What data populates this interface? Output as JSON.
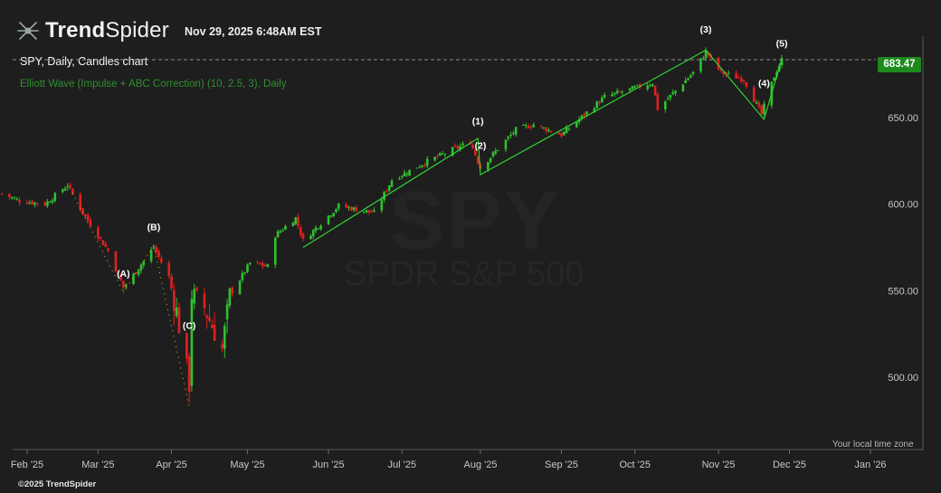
{
  "header": {
    "brand_bold": "Trend",
    "brand_light": "Spider",
    "datetime": "Nov 29, 2025 6:48AM EST",
    "chart_title": "SPY, Daily, Candles chart",
    "indicator_label": "Elliott Wave (Impulse + ABC Correction) (10, 2.5, 3), Daily"
  },
  "watermark": {
    "symbol": "SPY",
    "name": "SPDR S&P 500"
  },
  "footer": {
    "timezone_note": "Your local time zone",
    "copyright": "©2025 TrendSpider"
  },
  "colors": {
    "up": "#2fc02f",
    "down": "#e02020",
    "wave": "#33dd33",
    "background": "#1e1e1e",
    "badge": "#1d8a1d"
  },
  "chart_data": {
    "type": "candlestick",
    "title": "SPY, Daily, Candles chart",
    "ylim": [
      470,
      710
    ],
    "y_ticks": [
      500,
      550,
      600,
      650
    ],
    "y_tick_labels": [
      "500.00",
      "550.00",
      "600.00",
      "650.00"
    ],
    "last_price": 683.47,
    "last_price_label": "683.47",
    "x_month_labels": [
      "Feb '25",
      "Mar '25",
      "Apr '25",
      "May '25",
      "Jun '25",
      "Jul '25",
      "Aug '25",
      "Sep '25",
      "Oct '25",
      "Nov '25",
      "Dec '25",
      "Jan '26"
    ],
    "x_month_dates": [
      "2025-02-03",
      "2025-03-03",
      "2025-04-01",
      "2025-05-01",
      "2025-06-02",
      "2025-07-01",
      "2025-08-01",
      "2025-09-02",
      "2025-10-01",
      "2025-11-03",
      "2025-12-01",
      "2026-01-02"
    ],
    "x_range": [
      "2025-01-24",
      "2026-01-06"
    ],
    "price_path": [
      [
        "2025-01-24",
        606
      ],
      [
        "2025-01-31",
        602
      ],
      [
        "2025-02-10",
        600
      ],
      [
        "2025-02-19",
        611
      ],
      [
        "2025-02-25",
        595
      ],
      [
        "2025-03-07",
        573
      ],
      [
        "2025-03-13",
        552
      ],
      [
        "2025-03-18",
        561
      ],
      [
        "2025-03-25",
        575
      ],
      [
        "2025-03-31",
        558
      ],
      [
        "2025-04-03",
        538
      ],
      [
        "2025-04-08",
        496
      ],
      [
        "2025-04-09",
        548
      ],
      [
        "2025-04-14",
        540
      ],
      [
        "2025-04-21",
        516
      ],
      [
        "2025-04-24",
        547
      ],
      [
        "2025-05-02",
        566
      ],
      [
        "2025-05-09",
        564
      ],
      [
        "2025-05-12",
        582
      ],
      [
        "2025-05-20",
        592
      ],
      [
        "2025-05-23",
        579
      ],
      [
        "2025-06-06",
        599
      ],
      [
        "2025-06-20",
        595
      ],
      [
        "2025-06-27",
        614
      ],
      [
        "2025-07-10",
        624
      ],
      [
        "2025-07-28",
        636
      ],
      [
        "2025-08-01",
        621
      ],
      [
        "2025-08-15",
        643
      ],
      [
        "2025-08-22",
        646
      ],
      [
        "2025-09-02",
        640
      ],
      [
        "2025-09-19",
        662
      ],
      [
        "2025-10-08",
        670
      ],
      [
        "2025-10-10",
        655
      ],
      [
        "2025-10-24",
        676
      ],
      [
        "2025-10-29",
        688
      ],
      [
        "2025-11-04",
        676
      ],
      [
        "2025-11-13",
        672
      ],
      [
        "2025-11-20",
        652
      ],
      [
        "2025-11-25",
        674
      ],
      [
        "2025-11-28",
        683.47
      ]
    ],
    "elliott_wave_impulse": [
      [
        "2025-05-23",
        575
      ],
      [
        "2025-07-31",
        638
      ],
      [
        "2025-08-01",
        617
      ],
      [
        "2025-10-29",
        689
      ],
      [
        "2025-11-21",
        649
      ],
      [
        "2025-11-28",
        684
      ]
    ],
    "elliott_wave_correction": [
      [
        "2025-02-19",
        612
      ],
      [
        "2025-03-13",
        549
      ],
      [
        "2025-03-25",
        576
      ],
      [
        "2025-04-08",
        483
      ]
    ],
    "wave_labels": [
      {
        "text": "(1)",
        "date": "2025-07-31",
        "price": 646
      },
      {
        "text": "(2)",
        "date": "2025-08-01",
        "price": 632
      },
      {
        "text": "(3)",
        "date": "2025-10-29",
        "price": 699
      },
      {
        "text": "(4)",
        "date": "2025-11-21",
        "price": 668
      },
      {
        "text": "(5)",
        "date": "2025-11-28",
        "price": 691
      },
      {
        "text": "(A)",
        "date": "2025-03-13",
        "price": 558
      },
      {
        "text": "(B)",
        "date": "2025-03-25",
        "price": 585
      },
      {
        "text": "(C)",
        "date": "2025-04-08",
        "price": 528
      }
    ]
  }
}
